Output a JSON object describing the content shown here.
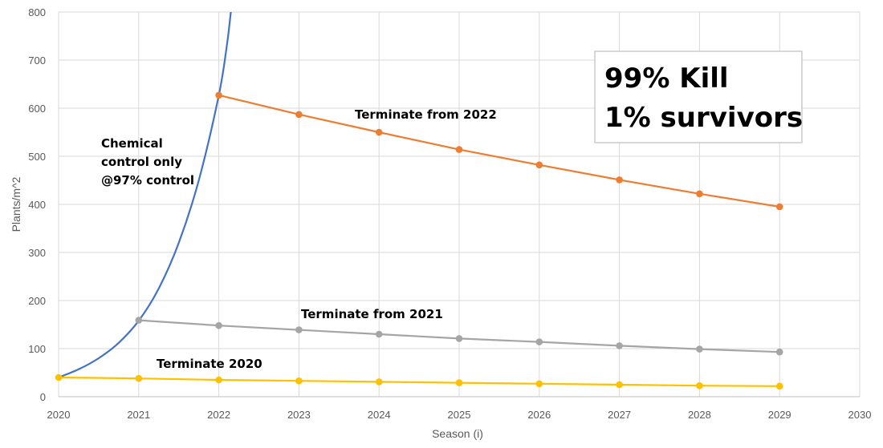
{
  "chart_data": {
    "type": "line",
    "xlabel": "Season (i)",
    "ylabel": "Plants/m^2",
    "xlim": [
      2020,
      2030
    ],
    "ylim": [
      0,
      800
    ],
    "x_ticks": [
      "2020",
      "2021",
      "2022",
      "2023",
      "2024",
      "2025",
      "2026",
      "2027",
      "2028",
      "2029",
      "2030"
    ],
    "y_ticks": [
      "0",
      "100",
      "200",
      "300",
      "400",
      "500",
      "600",
      "700",
      "800"
    ],
    "grid": true,
    "legend": "none",
    "series": [
      {
        "color": "#4472C4",
        "smooth": true,
        "markers": false,
        "x": [
          2020,
          2020.25,
          2020.5,
          2020.75,
          2021,
          2021.25,
          2021.5,
          2021.75,
          2022,
          2022.1,
          2022.15
        ],
        "values": [
          40,
          57,
          80,
          112,
          158,
          225,
          320,
          450,
          627,
          730,
          800
        ]
      },
      {
        "color": "#ED7D31",
        "smooth": false,
        "markers": true,
        "x": [
          2022,
          2023,
          2024,
          2025,
          2026,
          2027,
          2028,
          2029
        ],
        "values": [
          627,
          587,
          550,
          514,
          482,
          451,
          422,
          395
        ]
      },
      {
        "color": "#A5A5A5",
        "smooth": false,
        "markers": true,
        "x": [
          2021,
          2022,
          2023,
          2024,
          2025,
          2026,
          2027,
          2028,
          2029
        ],
        "values": [
          159,
          148,
          139,
          130,
          121,
          114,
          106,
          99,
          93
        ]
      },
      {
        "color": "#FFC000",
        "smooth": false,
        "markers": true,
        "x": [
          2020,
          2021,
          2022,
          2023,
          2024,
          2025,
          2026,
          2027,
          2028,
          2029
        ],
        "values": [
          40,
          38,
          35,
          33,
          31,
          29,
          27,
          25,
          23,
          22
        ]
      }
    ],
    "annotations": [
      {
        "lines": [
          "Chemical",
          "control only",
          "@97% control"
        ]
      },
      {
        "lines": [
          "Terminate from 2022"
        ]
      },
      {
        "lines": [
          "Terminate from 2021"
        ]
      },
      {
        "lines": [
          "Terminate 2020"
        ]
      }
    ],
    "callout": {
      "lines": [
        "99% Kill",
        "1% survivors"
      ]
    }
  }
}
